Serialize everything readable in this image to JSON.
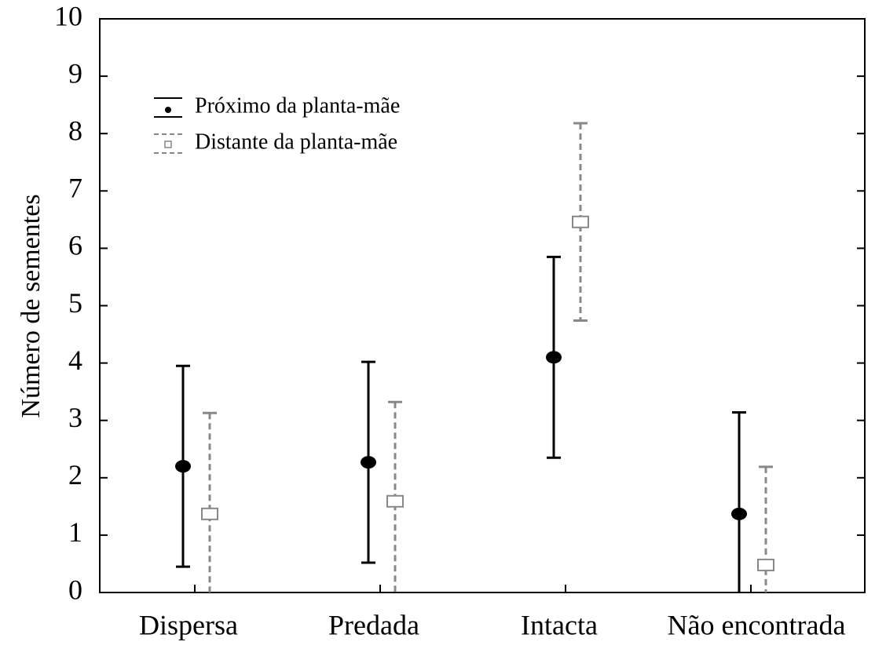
{
  "chart_data": {
    "type": "errorbar",
    "ylabel": "Número de sementes",
    "categories": [
      "Dispersa",
      "Predada",
      "Intacta",
      "Não encontrada"
    ],
    "series": [
      {
        "name": "Próximo da planta-mãe",
        "color": "#000000",
        "marker": "circle",
        "dashed": false,
        "values": [
          2.2,
          2.27,
          4.1,
          1.37
        ],
        "errors": [
          1.75,
          1.75,
          1.75,
          1.77
        ]
      },
      {
        "name": "Distante da planta-mãe",
        "color": "#888888",
        "marker": "square",
        "dashed": true,
        "values": [
          1.37,
          1.59,
          6.46,
          0.48
        ],
        "errors": [
          1.76,
          1.73,
          1.72,
          1.71
        ]
      }
    ],
    "ylim": [
      0,
      10
    ],
    "yticks": [
      0,
      1,
      2,
      3,
      4,
      5,
      6,
      7,
      8,
      9,
      10
    ],
    "grid": false,
    "legend": "upper left"
  }
}
